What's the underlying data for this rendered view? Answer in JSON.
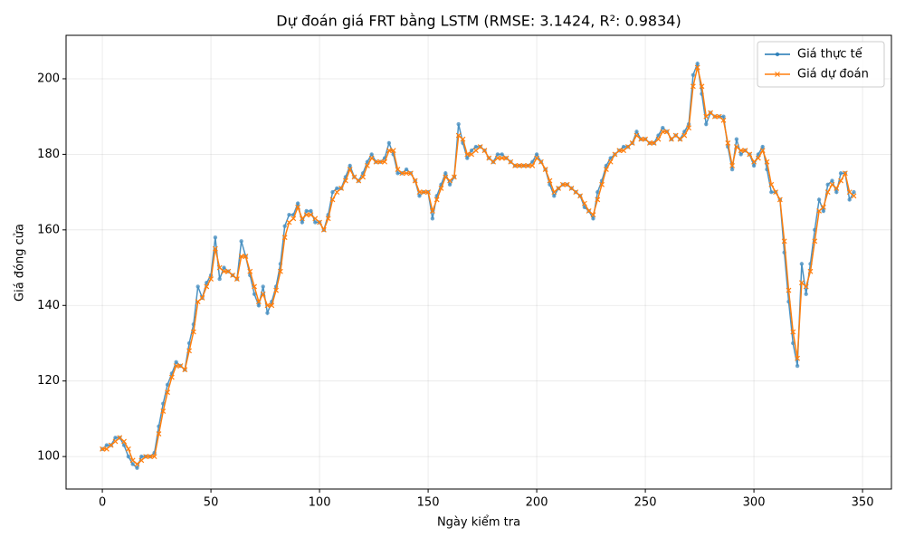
{
  "chart_data": {
    "type": "line",
    "title": "Dự đoán giá FRT bằng LSTM (RMSE: 3.1424, R²: 0.9834)",
    "xlabel": "Ngày kiểm tra",
    "ylabel": "Giá đóng cửa",
    "x": [
      0,
      2,
      4,
      6,
      8,
      10,
      12,
      14,
      16,
      18,
      20,
      22,
      24,
      26,
      28,
      30,
      32,
      34,
      36,
      38,
      40,
      42,
      44,
      46,
      48,
      50,
      52,
      54,
      56,
      58,
      60,
      62,
      64,
      66,
      68,
      70,
      72,
      74,
      76,
      78,
      80,
      82,
      84,
      86,
      88,
      90,
      92,
      94,
      96,
      98,
      100,
      102,
      104,
      106,
      108,
      110,
      112,
      114,
      116,
      118,
      120,
      122,
      124,
      126,
      128,
      130,
      132,
      134,
      136,
      138,
      140,
      142,
      144,
      146,
      148,
      150,
      152,
      154,
      156,
      158,
      160,
      162,
      164,
      166,
      168,
      170,
      172,
      174,
      176,
      178,
      180,
      182,
      184,
      186,
      188,
      190,
      192,
      194,
      196,
      198,
      200,
      202,
      204,
      206,
      208,
      210,
      212,
      214,
      216,
      218,
      220,
      222,
      224,
      226,
      228,
      230,
      232,
      234,
      236,
      238,
      240,
      242,
      244,
      246,
      248,
      250,
      252,
      254,
      256,
      258,
      260,
      262,
      264,
      266,
      268,
      270,
      272,
      274,
      276,
      278,
      280,
      282,
      284,
      286,
      288,
      290,
      292,
      294,
      296,
      298,
      300,
      302,
      304,
      306,
      308,
      310,
      312,
      314,
      316,
      318,
      320,
      322,
      324,
      326,
      328,
      330,
      332,
      334,
      336,
      338,
      340,
      342,
      344,
      346
    ],
    "series": [
      {
        "name": "Giá thực tế",
        "color": "#1f77b4",
        "marker": "o",
        "values": [
          102,
          103,
          103,
          105,
          105,
          103,
          100,
          98,
          97,
          100,
          100,
          100,
          101,
          108,
          114,
          119,
          122,
          125,
          124,
          123,
          130,
          135,
          145,
          142,
          146,
          148,
          158,
          147,
          150,
          149,
          148,
          147,
          157,
          153,
          148,
          143,
          140,
          145,
          138,
          141,
          145,
          151,
          161,
          164,
          164,
          167,
          162,
          165,
          165,
          162,
          162,
          160,
          164,
          170,
          171,
          171,
          174,
          177,
          174,
          173,
          175,
          178,
          180,
          178,
          178,
          179,
          183,
          180,
          175,
          175,
          176,
          175,
          173,
          169,
          170,
          170,
          163,
          169,
          172,
          175,
          172,
          174,
          188,
          183,
          179,
          181,
          182,
          182,
          181,
          179,
          178,
          180,
          180,
          179,
          178,
          177,
          177,
          177,
          177,
          178,
          180,
          178,
          176,
          172,
          169,
          171,
          172,
          172,
          171,
          170,
          169,
          166,
          165,
          163,
          170,
          173,
          177,
          179,
          180,
          181,
          182,
          182,
          183,
          186,
          184,
          184,
          183,
          183,
          185,
          187,
          186,
          184,
          185,
          184,
          186,
          188,
          201,
          204,
          196,
          188,
          191,
          190,
          190,
          190,
          182,
          176,
          184,
          180,
          181,
          180,
          177,
          180,
          182,
          176,
          170,
          170,
          168,
          154,
          141,
          130,
          124,
          151,
          143,
          151,
          160,
          168,
          165,
          172,
          173,
          170,
          175,
          175,
          168,
          170
        ]
      },
      {
        "name": "Giá dự đoán",
        "color": "#ff7f0e",
        "marker": "x",
        "values": [
          102,
          102,
          103,
          104,
          105,
          104,
          102,
          99,
          98,
          99,
          100,
          100,
          100,
          106,
          112,
          117,
          121,
          124,
          124,
          123,
          128,
          133,
          141,
          142,
          145,
          147,
          155,
          150,
          149,
          149,
          148,
          147,
          153,
          153,
          149,
          145,
          141,
          143,
          140,
          140,
          144,
          149,
          158,
          162,
          163,
          166,
          163,
          164,
          164,
          163,
          162,
          160,
          163,
          168,
          170,
          171,
          173,
          176,
          174,
          173,
          174,
          177,
          179,
          178,
          178,
          178,
          181,
          181,
          176,
          175,
          175,
          175,
          173,
          170,
          170,
          170,
          165,
          168,
          171,
          174,
          173,
          174,
          185,
          184,
          180,
          180,
          181,
          182,
          181,
          179,
          178,
          179,
          179,
          179,
          178,
          177,
          177,
          177,
          177,
          177,
          179,
          178,
          176,
          173,
          170,
          171,
          172,
          172,
          171,
          170,
          169,
          167,
          165,
          164,
          168,
          172,
          176,
          178,
          180,
          181,
          181,
          182,
          183,
          185,
          184,
          184,
          183,
          183,
          184,
          186,
          186,
          184,
          185,
          184,
          185,
          187,
          198,
          203,
          198,
          190,
          191,
          190,
          190,
          189,
          183,
          177,
          182,
          181,
          181,
          180,
          178,
          179,
          181,
          178,
          172,
          170,
          168,
          157,
          144,
          133,
          126,
          146,
          145,
          149,
          157,
          165,
          166,
          170,
          172,
          171,
          173,
          175,
          170,
          169
        ]
      }
    ],
    "xlim": [
      -16.7,
      363.3
    ],
    "ylim": [
      91.4,
      211.5
    ],
    "xticks": [
      0,
      50,
      100,
      150,
      200,
      250,
      300,
      350
    ],
    "yticks": [
      100,
      120,
      140,
      160,
      180,
      200
    ],
    "grid": true,
    "legend": "upper-right"
  }
}
